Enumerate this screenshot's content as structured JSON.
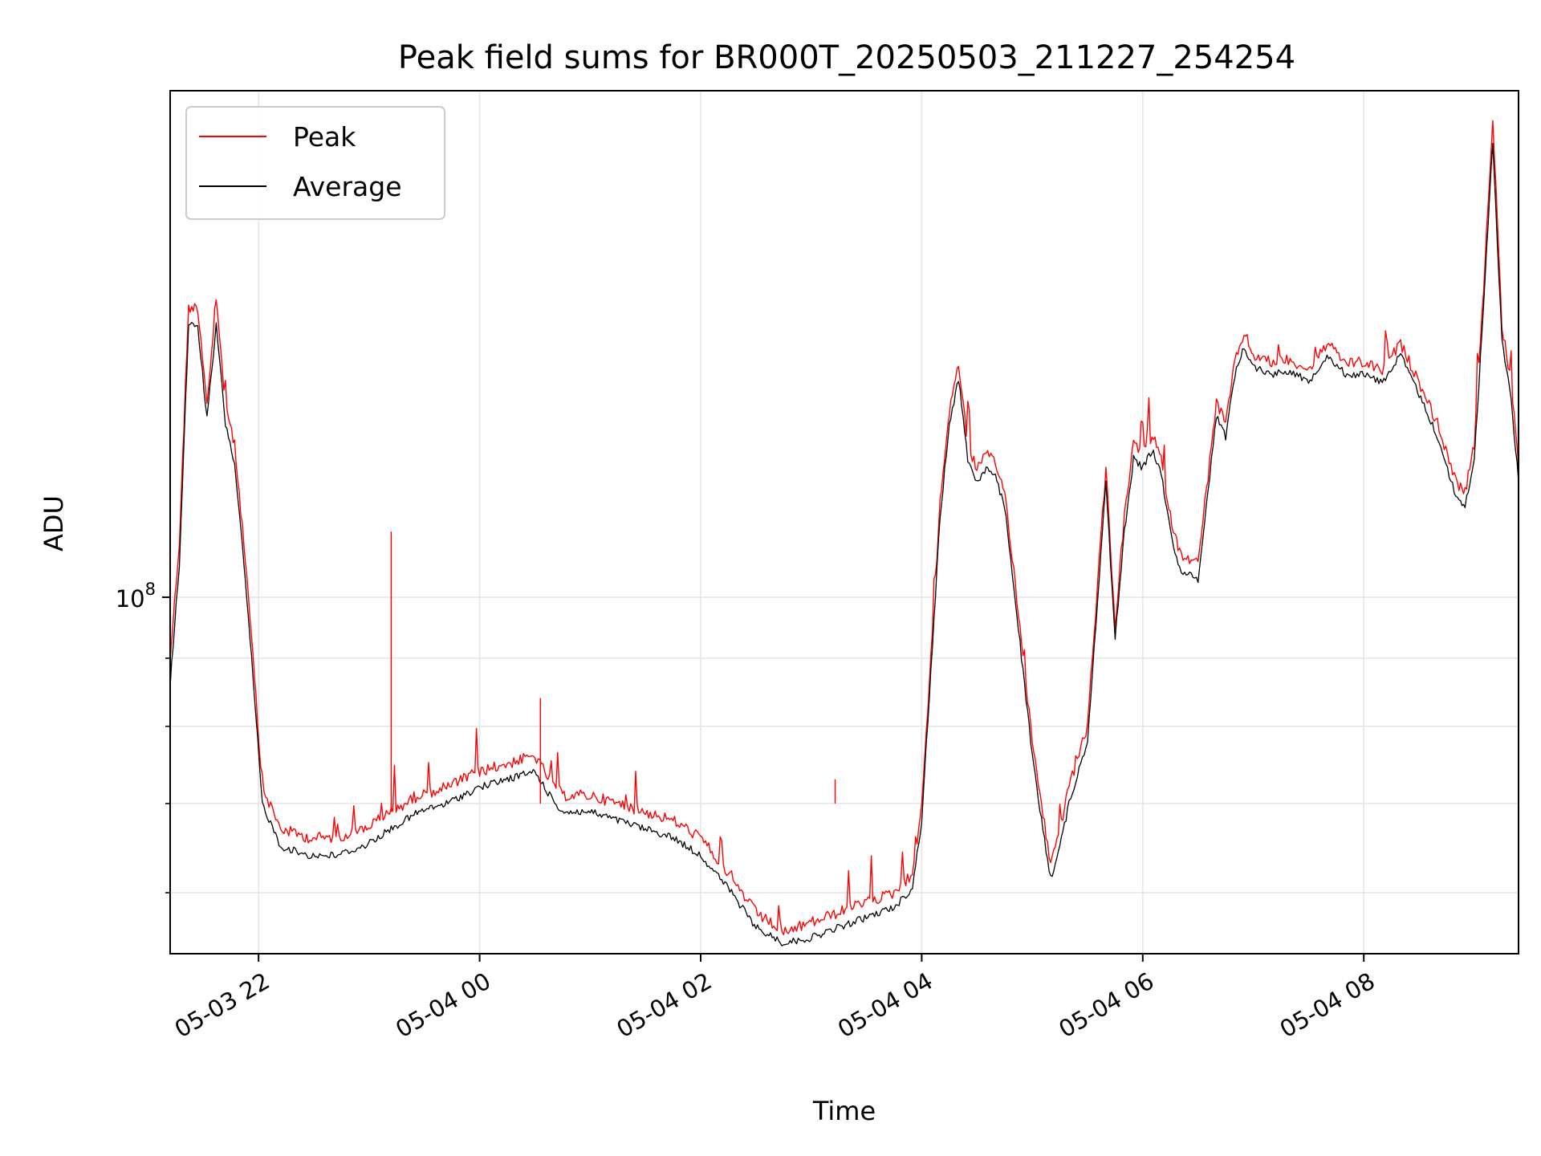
{
  "chart_data": {
    "type": "line",
    "title": "Peak field sums for BR000T_20250503_211227_254254",
    "xlabel": "Time",
    "ylabel": "ADU",
    "y_scale": "log",
    "ylim": [
      54000000,
      240000000
    ],
    "xlim": [
      "2025-05-03 21:12",
      "2025-05-04 09:24"
    ],
    "grid": true,
    "legend_position": "top-left",
    "x_tick_labels": [
      "05-03 22",
      "05-04 00",
      "05-04 02",
      "05-04 04",
      "05-04 06",
      "05-04 08"
    ],
    "x_ticks": [
      "2025-05-03 22:00",
      "2025-05-04 00:00",
      "2025-05-04 02:00",
      "2025-05-04 04:00",
      "2025-05-04 06:00",
      "2025-05-04 08:00"
    ],
    "y_major_tick_label": "10^8",
    "y_major_tick": 100000000,
    "y_minor_ticks": [
      60000000,
      70000000,
      80000000,
      90000000
    ],
    "x": [
      "2025-05-03 21:12",
      "2025-05-03 21:17",
      "2025-05-03 21:22",
      "2025-05-03 21:27",
      "2025-05-03 21:32",
      "2025-05-03 21:37",
      "2025-05-03 21:42",
      "2025-05-03 21:47",
      "2025-05-03 21:52",
      "2025-05-03 21:57",
      "2025-05-03 22:02",
      "2025-05-03 22:12",
      "2025-05-03 22:27",
      "2025-05-03 22:42",
      "2025-05-03 22:57",
      "2025-05-03 23:12",
      "2025-05-03 23:27",
      "2025-05-03 23:42",
      "2025-05-04 00:00",
      "2025-05-04 00:15",
      "2025-05-04 00:30",
      "2025-05-04 00:38",
      "2025-05-04 00:45",
      "2025-05-04 01:00",
      "2025-05-04 01:15",
      "2025-05-04 01:30",
      "2025-05-04 01:45",
      "2025-05-04 02:00",
      "2025-05-04 02:15",
      "2025-05-04 02:30",
      "2025-05-04 02:45",
      "2025-05-04 03:00",
      "2025-05-04 03:15",
      "2025-05-04 03:30",
      "2025-05-04 03:45",
      "2025-05-04 03:55",
      "2025-05-04 04:00",
      "2025-05-04 04:05",
      "2025-05-04 04:10",
      "2025-05-04 04:15",
      "2025-05-04 04:20",
      "2025-05-04 04:25",
      "2025-05-04 04:30",
      "2025-05-04 04:35",
      "2025-05-04 04:40",
      "2025-05-04 04:45",
      "2025-05-04 04:50",
      "2025-05-04 04:55",
      "2025-05-04 05:00",
      "2025-05-04 05:05",
      "2025-05-04 05:10",
      "2025-05-04 05:15",
      "2025-05-04 05:20",
      "2025-05-04 05:30",
      "2025-05-04 05:40",
      "2025-05-04 05:45",
      "2025-05-04 05:50",
      "2025-05-04 05:55",
      "2025-05-04 06:00",
      "2025-05-04 06:05",
      "2025-05-04 06:10",
      "2025-05-04 06:15",
      "2025-05-04 06:20",
      "2025-05-04 06:30",
      "2025-05-04 06:40",
      "2025-05-04 06:45",
      "2025-05-04 06:50",
      "2025-05-04 06:55",
      "2025-05-04 07:00",
      "2025-05-04 07:10",
      "2025-05-04 07:20",
      "2025-05-04 07:30",
      "2025-05-04 07:40",
      "2025-05-04 07:50",
      "2025-05-04 08:00",
      "2025-05-04 08:10",
      "2025-05-04 08:20",
      "2025-05-04 08:30",
      "2025-05-04 08:40",
      "2025-05-04 08:50",
      "2025-05-04 08:55",
      "2025-05-04 09:00",
      "2025-05-04 09:05",
      "2025-05-04 09:10",
      "2025-05-04 09:15",
      "2025-05-04 09:20",
      "2025-05-04 09:24"
    ],
    "series": [
      {
        "name": "Peak",
        "color": "#ff0000",
        "values": [
          90000000,
          110000000,
          165000000,
          165000000,
          140000000,
          166000000,
          140000000,
          130000000,
          110000000,
          90000000,
          72000000,
          67000000,
          66000000,
          66000000,
          67000000,
          69000000,
          71000000,
          72000000,
          74000000,
          75000000,
          76000000,
          73000000,
          71000000,
          71000000,
          70000000,
          69000000,
          68000000,
          66000000,
          62000000,
          58000000,
          56000000,
          57000000,
          58000000,
          59000000,
          60000000,
          62000000,
          70000000,
          90000000,
          118000000,
          138000000,
          150000000,
          130000000,
          125000000,
          128000000,
          126000000,
          120000000,
          105000000,
          90000000,
          78000000,
          70000000,
          63000000,
          67000000,
          72000000,
          80000000,
          125000000,
          95000000,
          115000000,
          130000000,
          128000000,
          132000000,
          127000000,
          115000000,
          108000000,
          106000000,
          140000000,
          135000000,
          150000000,
          158000000,
          152000000,
          150000000,
          151000000,
          148000000,
          155000000,
          150000000,
          150000000,
          148000000,
          155000000,
          145000000,
          135000000,
          122000000,
          120000000,
          130000000,
          170000000,
          230000000,
          160000000,
          145000000,
          125000000
        ]
      },
      {
        "name": "Average",
        "color": "#000000",
        "values": [
          86000000,
          106000000,
          160000000,
          160000000,
          136000000,
          160000000,
          135000000,
          126000000,
          106000000,
          87000000,
          70000000,
          65000000,
          64000000,
          64000000,
          65000000,
          67000000,
          69000000,
          70000000,
          72000000,
          73000000,
          74000000,
          71000000,
          69000000,
          69000000,
          68000000,
          67000000,
          66000000,
          64000000,
          60500000,
          56500000,
          55000000,
          55500000,
          56500000,
          57500000,
          58500000,
          60500000,
          68000000,
          88000000,
          115000000,
          135000000,
          146000000,
          127000000,
          122000000,
          125000000,
          123000000,
          117000000,
          102000000,
          88000000,
          76000000,
          68000000,
          61500000,
          65000000,
          70000000,
          78000000,
          122000000,
          93000000,
          112000000,
          127000000,
          125000000,
          129000000,
          124000000,
          112000000,
          105000000,
          103000000,
          137000000,
          132000000,
          147000000,
          154000000,
          149000000,
          147000000,
          148000000,
          145000000,
          152000000,
          147000000,
          147000000,
          145000000,
          152000000,
          142000000,
          132000000,
          119000000,
          117000000,
          127000000,
          165000000,
          220000000,
          156000000,
          141000000,
          122000000
        ]
      }
    ]
  }
}
